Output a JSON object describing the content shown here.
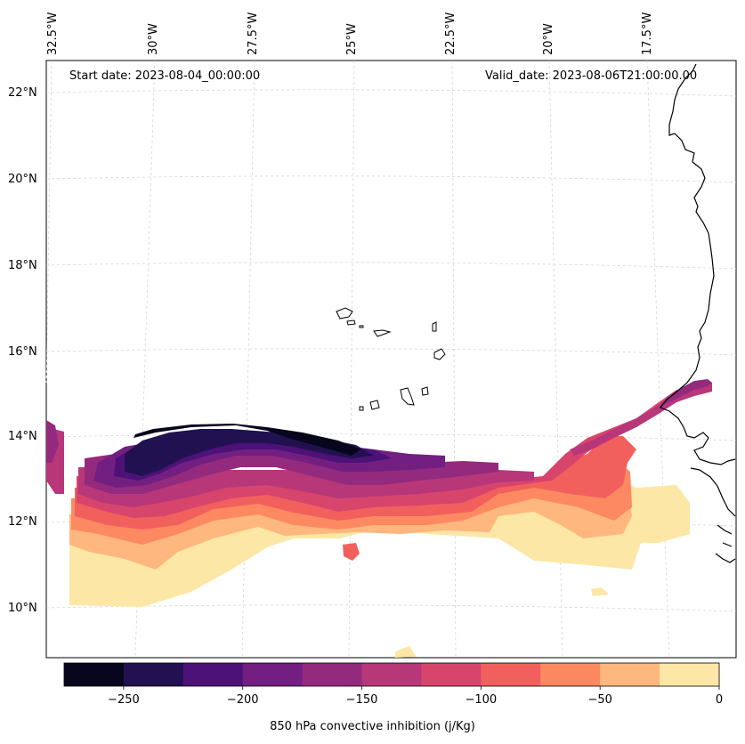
{
  "annotations": {
    "start_date": "Start date: 2023-08-04_00:00:00",
    "valid_date": "Valid_date: 2023-08-06T21:00:00.00"
  },
  "longitude_labels": [
    "32.5°W",
    "30°W",
    "27.5°W",
    "25°W",
    "22.5°W",
    "20°W",
    "17.5°W"
  ],
  "latitude_labels": [
    "22°N",
    "20°N",
    "18°N",
    "16°N",
    "14°N",
    "12°N",
    "10°N"
  ],
  "colorbar": {
    "label": "850 hPa convective inhibition (j/Kg)",
    "levels": [
      -275,
      -250,
      -225,
      -200,
      -175,
      -150,
      -125,
      -100,
      -75,
      -50,
      -25,
      0
    ],
    "tick_values": [
      -250,
      -200,
      -150,
      -100,
      -50,
      0
    ],
    "tick_labels": [
      "−250",
      "−200",
      "−150",
      "−100",
      "−50",
      "0"
    ],
    "colors": [
      "#07061c",
      "#221150",
      "#4d1277",
      "#721f81",
      "#932a7e",
      "#b73779",
      "#d8456c",
      "#f1605d",
      "#fc8961",
      "#feb77e",
      "#fce7a6"
    ]
  }
}
